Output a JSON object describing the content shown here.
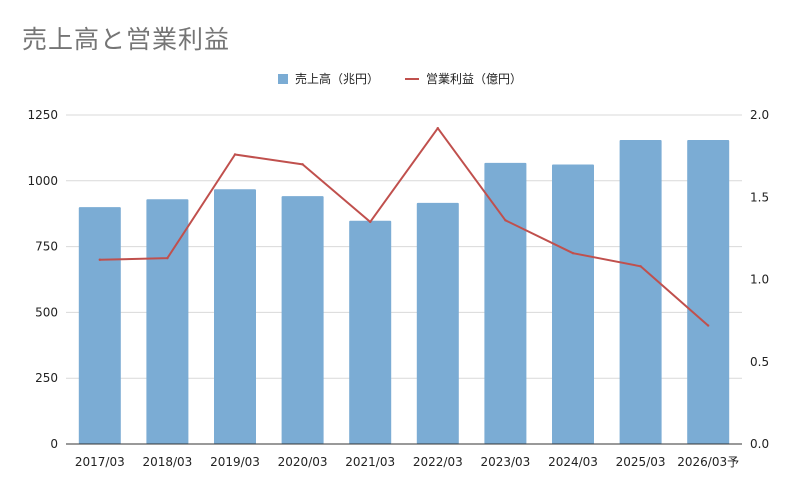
{
  "chart_data": {
    "type": "bar",
    "title": "売上高と営業利益",
    "categories": [
      "2017/03",
      "2018/03",
      "2019/03",
      "2020/03",
      "2021/03",
      "2022/03",
      "2023/03",
      "2024/03",
      "2025/03",
      "2026/03予"
    ],
    "series": [
      {
        "name": "売上高（兆円）",
        "type": "bar",
        "axis": "left",
        "color": "#7bacd4",
        "values": [
          900,
          930,
          968,
          942,
          848,
          916,
          1068,
          1062,
          1155,
          1155
        ]
      },
      {
        "name": "営業利益（億円）",
        "type": "line",
        "axis": "right",
        "color": "#c0504d",
        "values": [
          1.12,
          1.13,
          1.76,
          1.7,
          1.35,
          1.92,
          1.36,
          1.16,
          1.08,
          0.72
        ]
      }
    ],
    "y_left": {
      "lim": [
        0,
        1250
      ],
      "ticks": [
        "0",
        "250",
        "500",
        "750",
        "1000",
        "1250"
      ]
    },
    "y_right": {
      "lim": [
        0,
        2.0
      ],
      "ticks": [
        "0.0",
        "0.5",
        "1.0",
        "1.5",
        "2.0"
      ]
    },
    "grid": true,
    "legend_position": "top-center"
  }
}
